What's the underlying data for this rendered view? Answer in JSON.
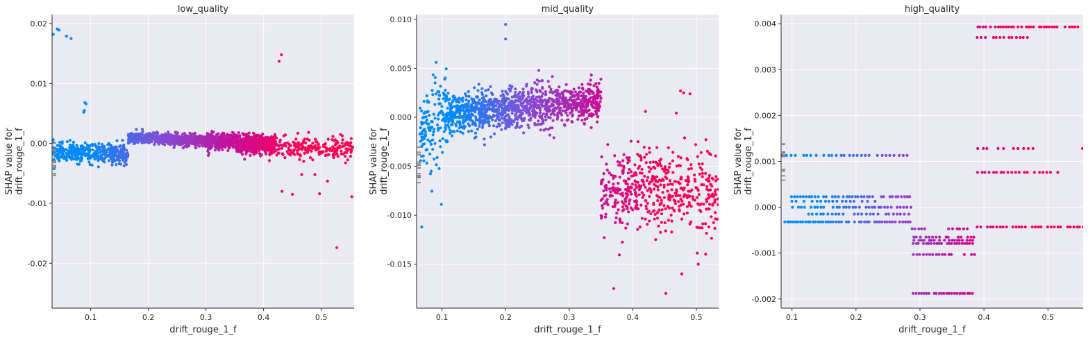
{
  "chart_data": [
    {
      "type": "scatter",
      "title": "low_quality",
      "xlabel": "drift_rouge_1_f",
      "ylabel_lines": [
        "SHAP value for",
        "drift_rouge_1_f"
      ],
      "xlim": [
        0.033,
        0.557
      ],
      "ylim": [
        -0.0275,
        0.0215
      ],
      "xticks": [
        0.1,
        0.2,
        0.3,
        0.4,
        0.5
      ],
      "xtick_labels": [
        "0.1",
        "0.2",
        "0.3",
        "0.4",
        "0.5"
      ],
      "yticks": [
        -0.02,
        -0.01,
        0.0,
        0.01,
        0.02
      ],
      "ytick_labels": [
        "-0.02",
        "-0.01",
        "0.00",
        "0.01",
        "0.02"
      ],
      "grid": true,
      "color_gradient": [
        "#008bfb",
        "#7f4fd8",
        "#c4109b",
        "#ff0052"
      ],
      "bands": [
        {
          "x0": 0.035,
          "x1": 0.165,
          "y0": -0.0015,
          "spread": 0.0013,
          "slope": -0.002,
          "n": 420
        },
        {
          "x0": 0.165,
          "x1": 0.3,
          "y0": 0.0009,
          "spread": 0.0008,
          "slope": -0.003,
          "n": 600
        },
        {
          "x0": 0.3,
          "x1": 0.42,
          "y0": 0.0004,
          "spread": 0.0012,
          "slope": -0.004,
          "n": 600
        },
        {
          "x0": 0.36,
          "x1": 0.555,
          "y0": -0.0003,
          "spread": 0.0016,
          "slope": -0.004,
          "n": 330
        }
      ],
      "points": [
        [
          0.035,
          0.0182
        ],
        [
          0.042,
          0.0191
        ],
        [
          0.045,
          0.0189
        ],
        [
          0.058,
          0.0179
        ],
        [
          0.066,
          0.0175
        ],
        [
          0.09,
          0.0068
        ],
        [
          0.092,
          0.0066
        ],
        [
          0.088,
          0.0052
        ],
        [
          0.089,
          0.0055
        ],
        [
          0.427,
          0.0137
        ],
        [
          0.431,
          0.0148
        ],
        [
          0.45,
          -0.0085
        ],
        [
          0.432,
          -0.008
        ],
        [
          0.497,
          -0.0084
        ],
        [
          0.553,
          -0.0089
        ],
        [
          0.527,
          -0.0174
        ],
        [
          0.466,
          -0.0052
        ],
        [
          0.489,
          -0.0052
        ],
        [
          0.511,
          -0.0063
        ]
      ]
    },
    {
      "type": "scatter",
      "title": "mid_quality",
      "xlabel": "drift_rouge_1_f",
      "ylabel_lines": [
        "SHAP value for",
        "drift_rouge_1_f"
      ],
      "xlim": [
        0.06,
        0.535
      ],
      "ylim": [
        -0.0195,
        0.0105
      ],
      "xticks": [
        0.1,
        0.2,
        0.3,
        0.4,
        0.5
      ],
      "xtick_labels": [
        "0.1",
        "0.2",
        "0.3",
        "0.4",
        "0.5"
      ],
      "yticks": [
        -0.015,
        -0.01,
        -0.005,
        0.0,
        0.005,
        0.01
      ],
      "ytick_labels": [
        "-0.015",
        "-0.010",
        "-0.005",
        "0.000",
        "0.005",
        "0.010"
      ],
      "grid": true,
      "color_gradient": [
        "#008bfb",
        "#7f4fd8",
        "#c4109b",
        "#ff0052"
      ],
      "bands": [
        {
          "x0": 0.065,
          "x1": 0.11,
          "y0": -0.002,
          "spread": 0.0035,
          "slope": 0.04,
          "n": 150
        },
        {
          "x0": 0.11,
          "x1": 0.35,
          "y0": 0.0003,
          "spread": 0.0017,
          "slope": 0.006,
          "n": 1100
        },
        {
          "x0": 0.35,
          "x1": 0.535,
          "y0": -0.0075,
          "spread": 0.0035,
          "slope": 0.0,
          "n": 500
        }
      ],
      "points": [
        [
          0.2,
          0.0095
        ],
        [
          0.2,
          0.008
        ],
        [
          0.068,
          -0.0112
        ],
        [
          0.099,
          -0.0089
        ],
        [
          0.452,
          -0.018
        ],
        [
          0.37,
          -0.0175
        ],
        [
          0.475,
          0.0027
        ],
        [
          0.48,
          0.0025
        ],
        [
          0.49,
          0.0024
        ],
        [
          0.503,
          -0.015
        ],
        [
          0.477,
          -0.016
        ],
        [
          0.42,
          0.0006
        ]
      ]
    },
    {
      "type": "scatter",
      "title": "high_quality",
      "xlabel": "drift_rouge_1_f",
      "ylabel_lines": [
        "SHAP value for",
        "drift_rouge_1_f"
      ],
      "xlim": [
        0.083,
        0.555
      ],
      "ylim": [
        -0.0022,
        0.0042
      ],
      "xticks": [
        0.1,
        0.2,
        0.3,
        0.4,
        0.5
      ],
      "xtick_labels": [
        "0.1",
        "0.2",
        "0.3",
        "0.4",
        "0.5"
      ],
      "yticks": [
        -0.002,
        -0.001,
        0.0,
        0.001,
        0.002,
        0.003,
        0.004
      ],
      "ytick_labels": [
        "-0.002",
        "-0.001",
        "0.000",
        "0.001",
        "0.002",
        "0.003",
        "0.004"
      ],
      "grid": true,
      "color_gradient": [
        "#008bfb",
        "#7f4fd8",
        "#c4109b",
        "#ff0052"
      ],
      "rows": [
        {
          "y": 0.00113,
          "x0": 0.085,
          "x1": 0.285,
          "step": 0.0065
        },
        {
          "y": 0.00023,
          "x0": 0.1,
          "x1": 0.285,
          "step": 0.0045
        },
        {
          "y": 0.00013,
          "x0": 0.1,
          "x1": 0.235,
          "step": 0.0065
        },
        {
          "y": 0.0,
          "x0": 0.1,
          "x1": 0.285,
          "step": 0.005
        },
        {
          "y": -0.00015,
          "x0": 0.12,
          "x1": 0.285,
          "step": 0.006
        },
        {
          "y": -0.00032,
          "x0": 0.085,
          "x1": 0.285,
          "step": 0.004
        },
        {
          "y": -0.00047,
          "x0": 0.288,
          "x1": 0.31,
          "step": 0.005
        },
        {
          "y": -0.00047,
          "x0": 0.345,
          "x1": 0.385,
          "step": 0.006
        },
        {
          "y": -0.00065,
          "x0": 0.29,
          "x1": 0.385,
          "step": 0.005
        },
        {
          "y": -0.00072,
          "x0": 0.29,
          "x1": 0.385,
          "step": 0.004
        },
        {
          "y": -0.00079,
          "x0": 0.29,
          "x1": 0.385,
          "step": 0.004
        },
        {
          "y": -0.00103,
          "x0": 0.29,
          "x1": 0.385,
          "step": 0.005
        },
        {
          "y": -0.00188,
          "x0": 0.29,
          "x1": 0.385,
          "step": 0.004
        },
        {
          "y": 0.00393,
          "x0": 0.39,
          "x1": 0.55,
          "step": 0.004
        },
        {
          "y": 0.0037,
          "x0": 0.39,
          "x1": 0.47,
          "step": 0.006
        },
        {
          "y": 0.00128,
          "x0": 0.39,
          "x1": 0.48,
          "step": 0.008
        },
        {
          "y": 0.00076,
          "x0": 0.39,
          "x1": 0.52,
          "step": 0.006
        },
        {
          "y": -0.00043,
          "x0": 0.39,
          "x1": 0.555,
          "step": 0.005
        }
      ],
      "points": [
        [
          0.554,
          0.00128
        ],
        [
          0.095,
          -0.00032
        ]
      ]
    }
  ]
}
